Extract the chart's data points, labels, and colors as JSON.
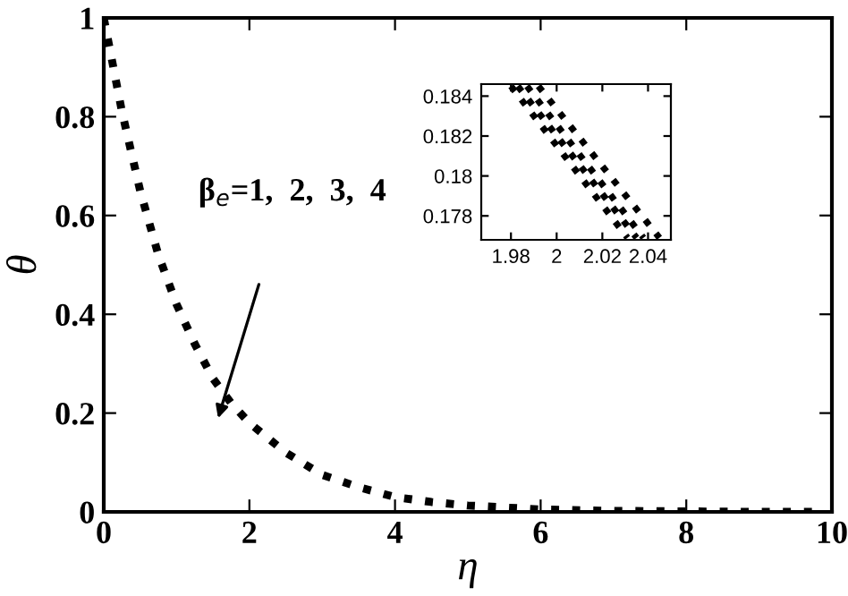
{
  "chart_data": [
    {
      "type": "line",
      "xlabel": "η",
      "ylabel": "θ",
      "xlim": [
        0,
        10
      ],
      "ylim": [
        0,
        1
      ],
      "xticks": [
        0,
        2,
        4,
        6,
        8,
        10
      ],
      "yticks": [
        0,
        0.2,
        0.4,
        0.6,
        0.8,
        1
      ],
      "grid": false,
      "line_style": "dotted",
      "x": [
        0,
        0.25,
        0.5,
        0.75,
        1,
        1.25,
        1.5,
        1.75,
        2,
        2.5,
        3,
        3.5,
        4,
        4.5,
        5,
        6,
        7,
        8,
        9,
        9.8
      ],
      "series": [
        {
          "color": "#000000",
          "values": [
            1,
            0.81,
            0.65,
            0.52,
            0.42,
            0.34,
            0.27,
            0.22,
            0.18,
            0.12,
            0.075,
            0.05,
            0.03,
            0.02,
            0.013,
            0.005,
            0.002,
            0.001,
            0,
            0
          ]
        }
      ],
      "annotations": [
        "β$_{e}$=1,  2,  3,  4"
      ]
    },
    {
      "type": "line",
      "xlim": [
        1.967,
        2.05
      ],
      "ylim": [
        0.1768,
        0.1846
      ],
      "xticks": [
        1.98,
        {
          "value": 2,
          "label": "2"
        },
        2.02,
        2.04
      ],
      "yticks": [
        0.178,
        {
          "value": 0.18,
          "label": "0.18"
        },
        0.182,
        0.184
      ],
      "grid": false,
      "line_style": "dotted",
      "series": [
        {
          "color": "#000000",
          "x": [
            1.98,
            2.031
          ],
          "values": [
            0.1845,
            0.1769
          ]
        },
        {
          "color": "#000000",
          "x": [
            1.983,
            2.035
          ],
          "values": [
            0.1845,
            0.1769
          ]
        },
        {
          "color": "#000000",
          "x": [
            1.987,
            2.038
          ],
          "values": [
            0.1845,
            0.1769
          ]
        },
        {
          "color": "#000000",
          "x": [
            1.992,
            2.045
          ],
          "values": [
            0.1845,
            0.1769
          ]
        }
      ]
    }
  ]
}
